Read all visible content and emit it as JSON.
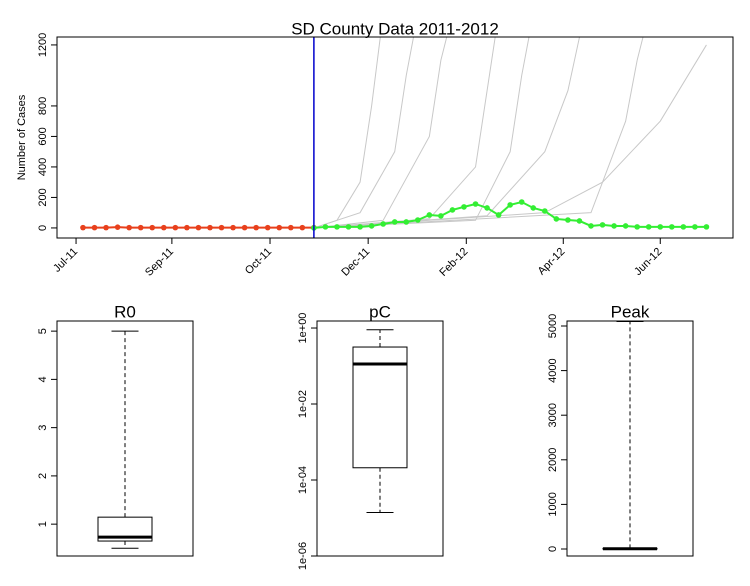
{
  "chart_data": [
    {
      "type": "line",
      "title": "SD County Data 2011-2012",
      "ylabel": "Number of Cases",
      "xlim": [
        -2.25,
        56.3
      ],
      "xticks": [
        {
          "value": -0.6,
          "label": "Jul-11"
        },
        {
          "value": 7.7,
          "label": "Sep-11"
        },
        {
          "value": 16.2,
          "label": "Oct-11"
        },
        {
          "value": 24.7,
          "label": "Dec-11"
        },
        {
          "value": 33.2,
          "label": "Feb-12"
        },
        {
          "value": 41.6,
          "label": "Apr-12"
        },
        {
          "value": 50,
          "label": "Jun-12"
        }
      ],
      "ylim": [
        -66,
        1252
      ],
      "yticks": [
        0,
        200,
        400,
        600,
        800,
        1200
      ],
      "vline": 20,
      "vline_color": "#0000cc",
      "series": [
        {
          "color": "#c8c8c8",
          "x": [
            20,
            22,
            24,
            25,
            26
          ],
          "values": [
            0,
            50,
            300,
            800,
            1400
          ]
        },
        {
          "color": "#c8c8c8",
          "x": [
            20,
            24,
            27,
            28,
            29
          ],
          "values": [
            0,
            100,
            500,
            1000,
            1400
          ]
        },
        {
          "color": "#c8c8c8",
          "x": [
            20,
            26,
            30,
            31,
            32
          ],
          "values": [
            0,
            50,
            600,
            1100,
            1400
          ]
        },
        {
          "color": "#c8c8c8",
          "x": [
            20,
            30,
            34,
            35,
            36
          ],
          "values": [
            0,
            60,
            400,
            900,
            1400
          ]
        },
        {
          "color": "#c8c8c8",
          "x": [
            20,
            34,
            37,
            38,
            39
          ],
          "values": [
            0,
            50,
            500,
            1000,
            1400
          ]
        },
        {
          "color": "#c8c8c8",
          "x": [
            20,
            35,
            40,
            42,
            43
          ],
          "values": [
            0,
            80,
            500,
            900,
            1250
          ]
        },
        {
          "color": "#c8c8c8",
          "x": [
            20,
            44,
            47,
            48,
            49
          ],
          "values": [
            0,
            100,
            700,
            1100,
            1400
          ]
        },
        {
          "color": "#c8c8c8",
          "x": [
            20,
            40,
            45,
            50,
            54
          ],
          "values": [
            0,
            100,
            300,
            700,
            1200
          ]
        },
        {
          "color": "#e8401c",
          "marker": true,
          "x": [
            0,
            1,
            2,
            3,
            4,
            5,
            6,
            7,
            8,
            9,
            10,
            11,
            12,
            13,
            14,
            15,
            16,
            17,
            18,
            19,
            20
          ],
          "values": [
            2,
            2,
            2,
            5,
            2,
            2,
            2,
            2,
            2,
            2,
            2,
            2,
            2,
            2,
            2,
            2,
            2,
            2,
            2,
            2,
            2
          ]
        },
        {
          "color": "#33ee33",
          "marker": true,
          "x": [
            20,
            21,
            22,
            23,
            24,
            25,
            26,
            27,
            28,
            29,
            30,
            31,
            32,
            33,
            34,
            35,
            36,
            37,
            38,
            39,
            40,
            41,
            42,
            43,
            44,
            45,
            46,
            47,
            48,
            49,
            50,
            51,
            52,
            53,
            54
          ],
          "values": [
            0,
            7,
            7,
            7,
            7,
            13,
            26,
            39,
            39,
            52,
            85,
            79,
            118,
            138,
            157,
            131,
            85,
            151,
            170,
            131,
            111,
            59,
            52,
            46,
            13,
            20,
            13,
            13,
            7,
            7,
            7,
            7,
            7,
            7,
            7
          ]
        }
      ]
    },
    {
      "type": "box",
      "title": "R0",
      "ylim": [
        0.34,
        5.21
      ],
      "yticks": [
        1,
        2,
        3,
        4,
        5
      ],
      "min": 0.5,
      "q1": 0.65,
      "median": 0.73,
      "q3": 1.145,
      "max": 5
    },
    {
      "type": "box",
      "title": "pC",
      "log_scale": true,
      "ylim": [
        1e-06,
        1.53
      ],
      "yticks": [
        {
          "value": 1,
          "label": "1e+00"
        },
        {
          "value": 0.01,
          "label": "1e-02"
        },
        {
          "value": 0.0001,
          "label": "1e-04"
        },
        {
          "value": 1e-06,
          "label": "1e-06"
        }
      ],
      "min": 1.4e-05,
      "q1": 0.00021,
      "median": 0.113,
      "q3": 0.316,
      "max": 0.9
    },
    {
      "type": "box",
      "title": "Peak",
      "ylim": [
        -157,
        5112
      ],
      "yticks": [
        0,
        1000,
        2000,
        3000,
        4000,
        5000
      ],
      "min": 0,
      "q1": 0,
      "median": 5,
      "q3": 15,
      "max": 5100
    }
  ]
}
